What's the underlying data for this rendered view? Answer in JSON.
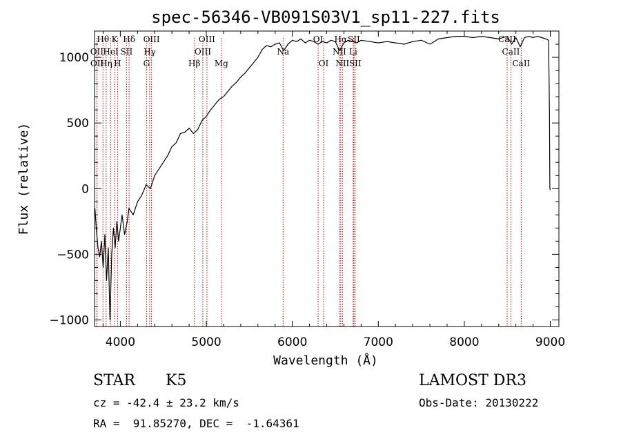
{
  "chart_data": {
    "type": "line",
    "title": "spec-56346-VB091S03V1_sp11-227.fits",
    "xlabel": "Wavelength (Å)",
    "ylabel": "Flux (relative)",
    "xlim": [
      3700,
      9100
    ],
    "ylim": [
      -1050,
      1200
    ],
    "xticks": [
      4000,
      5000,
      6000,
      7000,
      8000,
      9000
    ],
    "yticks": [
      -1000,
      -500,
      0,
      500,
      1000
    ],
    "ytick_labels": [
      "−1000",
      "−500",
      "0",
      "500",
      "1000"
    ],
    "series": [
      {
        "name": "spectrum",
        "color": "#000000",
        "points": [
          [
            3705,
            -150
          ],
          [
            3720,
            -300
          ],
          [
            3740,
            -450
          ],
          [
            3760,
            -520
          ],
          [
            3780,
            -400
          ],
          [
            3800,
            -600
          ],
          [
            3820,
            -350
          ],
          [
            3840,
            -700
          ],
          [
            3860,
            -450
          ],
          [
            3880,
            -1000
          ],
          [
            3900,
            -500
          ],
          [
            3920,
            -300
          ],
          [
            3940,
            -450
          ],
          [
            3960,
            -250
          ],
          [
            3980,
            -400
          ],
          [
            4000,
            -300
          ],
          [
            4020,
            -200
          ],
          [
            4050,
            -350
          ],
          [
            4080,
            -250
          ],
          [
            4100,
            -150
          ],
          [
            4150,
            -200
          ],
          [
            4200,
            -100
          ],
          [
            4250,
            -50
          ],
          [
            4300,
            30
          ],
          [
            4350,
            0
          ],
          [
            4400,
            100
          ],
          [
            4450,
            150
          ],
          [
            4500,
            200
          ],
          [
            4550,
            250
          ],
          [
            4600,
            320
          ],
          [
            4650,
            350
          ],
          [
            4700,
            420
          ],
          [
            4750,
            430
          ],
          [
            4800,
            460
          ],
          [
            4850,
            420
          ],
          [
            4900,
            450
          ],
          [
            4950,
            520
          ],
          [
            5000,
            550
          ],
          [
            5050,
            600
          ],
          [
            5100,
            640
          ],
          [
            5150,
            680
          ],
          [
            5200,
            700
          ],
          [
            5250,
            740
          ],
          [
            5300,
            780
          ],
          [
            5350,
            810
          ],
          [
            5400,
            850
          ],
          [
            5450,
            880
          ],
          [
            5500,
            920
          ],
          [
            5550,
            960
          ],
          [
            5600,
            1000
          ],
          [
            5650,
            1060
          ],
          [
            5700,
            1090
          ],
          [
            5750,
            1080
          ],
          [
            5800,
            1100
          ],
          [
            5850,
            1110
          ],
          [
            5900,
            1050
          ],
          [
            5950,
            1100
          ],
          [
            6000,
            1130
          ],
          [
            6050,
            1120
          ],
          [
            6100,
            1140
          ],
          [
            6150,
            1110
          ],
          [
            6200,
            1130
          ],
          [
            6250,
            1120
          ],
          [
            6300,
            1100
          ],
          [
            6350,
            1120
          ],
          [
            6400,
            1110
          ],
          [
            6450,
            1130
          ],
          [
            6500,
            1120
          ],
          [
            6550,
            1050
          ],
          [
            6600,
            1110
          ],
          [
            6650,
            1130
          ],
          [
            6700,
            1120
          ],
          [
            6750,
            1110
          ],
          [
            6800,
            1130
          ],
          [
            6900,
            1120
          ],
          [
            7000,
            1110
          ],
          [
            7100,
            1120
          ],
          [
            7200,
            1110
          ],
          [
            7300,
            1100
          ],
          [
            7400,
            1120
          ],
          [
            7500,
            1130
          ],
          [
            7600,
            1100
          ],
          [
            7700,
            1140
          ],
          [
            7800,
            1150
          ],
          [
            7900,
            1160
          ],
          [
            8000,
            1160
          ],
          [
            8100,
            1150
          ],
          [
            8200,
            1160
          ],
          [
            8300,
            1150
          ],
          [
            8400,
            1140
          ],
          [
            8500,
            1160
          ],
          [
            8550,
            1100
          ],
          [
            8600,
            1150
          ],
          [
            8650,
            1080
          ],
          [
            8700,
            1150
          ],
          [
            8750,
            1160
          ],
          [
            8800,
            1150
          ],
          [
            8850,
            1160
          ],
          [
            8900,
            1150
          ],
          [
            8950,
            1140
          ],
          [
            8980,
            1130
          ],
          [
            8990,
            600
          ],
          [
            8995,
            0
          ],
          [
            9000,
            -10
          ]
        ]
      }
    ],
    "line_markers": [
      {
        "label": "Hθ",
        "wl": 3798,
        "row": 0
      },
      {
        "label": "OII",
        "wl": 3727,
        "row": 1
      },
      {
        "label": "OII",
        "wl": 3729,
        "row": 2
      },
      {
        "label": "HeI",
        "wl": 3889,
        "row": 1
      },
      {
        "label": "Hη",
        "wl": 3835,
        "row": 2
      },
      {
        "label": "K",
        "wl": 3934,
        "row": 0
      },
      {
        "label": "H",
        "wl": 3968,
        "row": 2
      },
      {
        "label": "SII",
        "wl": 4072,
        "row": 1
      },
      {
        "label": "Hδ",
        "wl": 4102,
        "row": 0
      },
      {
        "label": "OIII",
        "wl": 4363,
        "row": 0
      },
      {
        "label": "Hγ",
        "wl": 4341,
        "row": 1
      },
      {
        "label": "G",
        "wl": 4305,
        "row": 2
      },
      {
        "label": "Hβ",
        "wl": 4861,
        "row": 2
      },
      {
        "label": "OIII",
        "wl": 5007,
        "row": 0
      },
      {
        "label": "OIII",
        "wl": 4959,
        "row": 1
      },
      {
        "label": "Mg",
        "wl": 5175,
        "row": 2
      },
      {
        "label": "Na",
        "wl": 5893,
        "row": 1
      },
      {
        "label": "OI",
        "wl": 6300,
        "row": 0
      },
      {
        "label": "OI",
        "wl": 6364,
        "row": 2
      },
      {
        "label": "Hα",
        "wl": 6563,
        "row": 0
      },
      {
        "label": "NII",
        "wl": 6548,
        "row": 1
      },
      {
        "label": "NII",
        "wl": 6583,
        "row": 2
      },
      {
        "label": "SII",
        "wl": 6716,
        "row": 0
      },
      {
        "label": "Li",
        "wl": 6708,
        "row": 1
      },
      {
        "label": "SII",
        "wl": 6731,
        "row": 2
      },
      {
        "label": "CaII",
        "wl": 8498,
        "row": 0
      },
      {
        "label": "CaII",
        "wl": 8542,
        "row": 1
      },
      {
        "label": "CaII",
        "wl": 8662,
        "row": 2
      }
    ],
    "marker_color": "#cc0000"
  },
  "info": {
    "object_class": "STAR",
    "subclass": "K5",
    "survey": "LAMOST DR3",
    "redshift": "cz = -42.4 ± 23.2 km/s",
    "obs_date": "Obs-Date: 20130222",
    "coords": "RA =  91.85270, DEC =  -1.64361"
  }
}
